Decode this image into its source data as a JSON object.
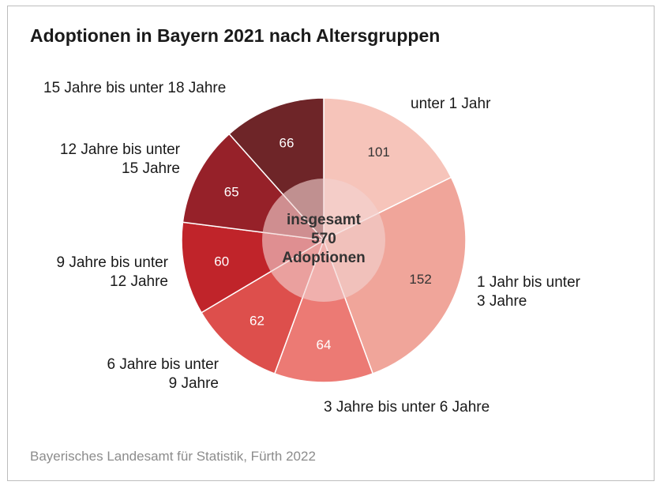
{
  "title": "Adoptionen in Bayern 2021 nach Altersgruppen",
  "source": "Bayerisches Landesamt für Statistik, Fürth 2022",
  "chart_data": {
    "type": "pie",
    "title": "Adoptionen in Bayern 2021 nach Altersgruppen",
    "center_label": [
      "insgesamt",
      "570",
      "Adoptionen"
    ],
    "total": 570,
    "slices": [
      {
        "label": [
          "unter 1 Jahr"
        ],
        "value": 101,
        "color": "#f6c4ba"
      },
      {
        "label": [
          "1 Jahr bis unter",
          "3 Jahre"
        ],
        "value": 152,
        "color": "#f0a59a"
      },
      {
        "label": [
          "3 Jahre bis unter 6 Jahre"
        ],
        "value": 64,
        "color": "#ec7a74"
      },
      {
        "label": [
          "6 Jahre bis unter",
          "9 Jahre"
        ],
        "value": 62,
        "color": "#dd4f4c"
      },
      {
        "label": [
          "9 Jahre bis unter",
          "12 Jahre"
        ],
        "value": 60,
        "color": "#c0242a"
      },
      {
        "label": [
          "12 Jahre bis unter",
          "15 Jahre"
        ],
        "value": 65,
        "color": "#962129"
      },
      {
        "label": [
          "15 Jahre bis unter 18 Jahre"
        ],
        "value": 66,
        "color": "#6e2528"
      }
    ],
    "value_label_colors": [
      "#333333",
      "#333333",
      "#ffffff",
      "#ffffff",
      "#ffffff",
      "#ffffff",
      "#ffffff"
    ],
    "center_color": "#f2d2d0"
  }
}
